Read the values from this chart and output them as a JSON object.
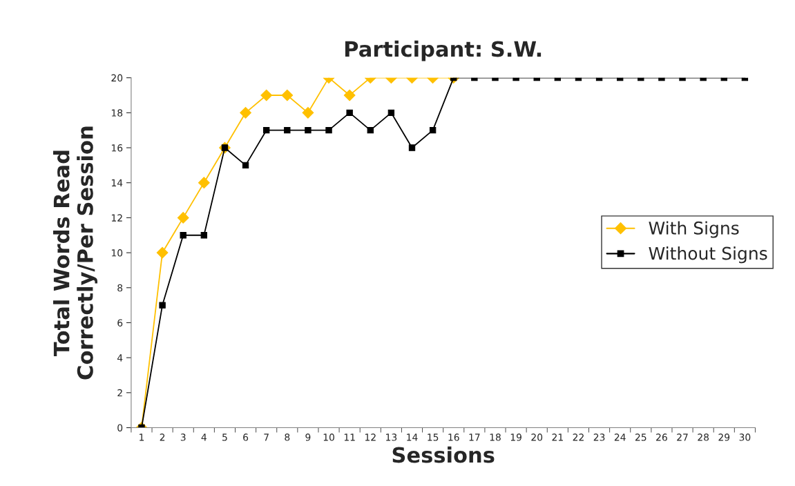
{
  "chart_data": {
    "type": "line",
    "title": "Participant: S.W.",
    "xlabel": "Sessions",
    "ylabel": "Total Words Read\nCorrectly/Per Session",
    "categories": [
      "1",
      "2",
      "3",
      "4",
      "5",
      "6",
      "7",
      "8",
      "9",
      "10",
      "11",
      "12",
      "13",
      "14",
      "15",
      "16",
      "17",
      "18",
      "19",
      "20",
      "21",
      "22",
      "23",
      "24",
      "25",
      "26",
      "27",
      "28",
      "29",
      "30"
    ],
    "series": [
      {
        "name": "With Signs",
        "color": "#ffc000",
        "marker": "diamond",
        "values": [
          0,
          10,
          12,
          14,
          16,
          18,
          19,
          19,
          18,
          20,
          19,
          20,
          20,
          20,
          20,
          20,
          null,
          null,
          null,
          null,
          null,
          null,
          null,
          null,
          null,
          null,
          null,
          null,
          null,
          null
        ]
      },
      {
        "name": "Without Signs",
        "color": "#000000",
        "marker": "square",
        "values": [
          0,
          7,
          11,
          11,
          16,
          15,
          17,
          17,
          17,
          17,
          18,
          17,
          18,
          16,
          17,
          20,
          20,
          20,
          20,
          20,
          20,
          20,
          20,
          20,
          20,
          20,
          20,
          20,
          20,
          20
        ]
      }
    ],
    "ylim": [
      0,
      20
    ],
    "yticks": [
      0,
      2,
      4,
      6,
      8,
      10,
      12,
      14,
      16,
      18,
      20
    ],
    "grid": false,
    "legend": "right",
    "line_style": "solid"
  }
}
